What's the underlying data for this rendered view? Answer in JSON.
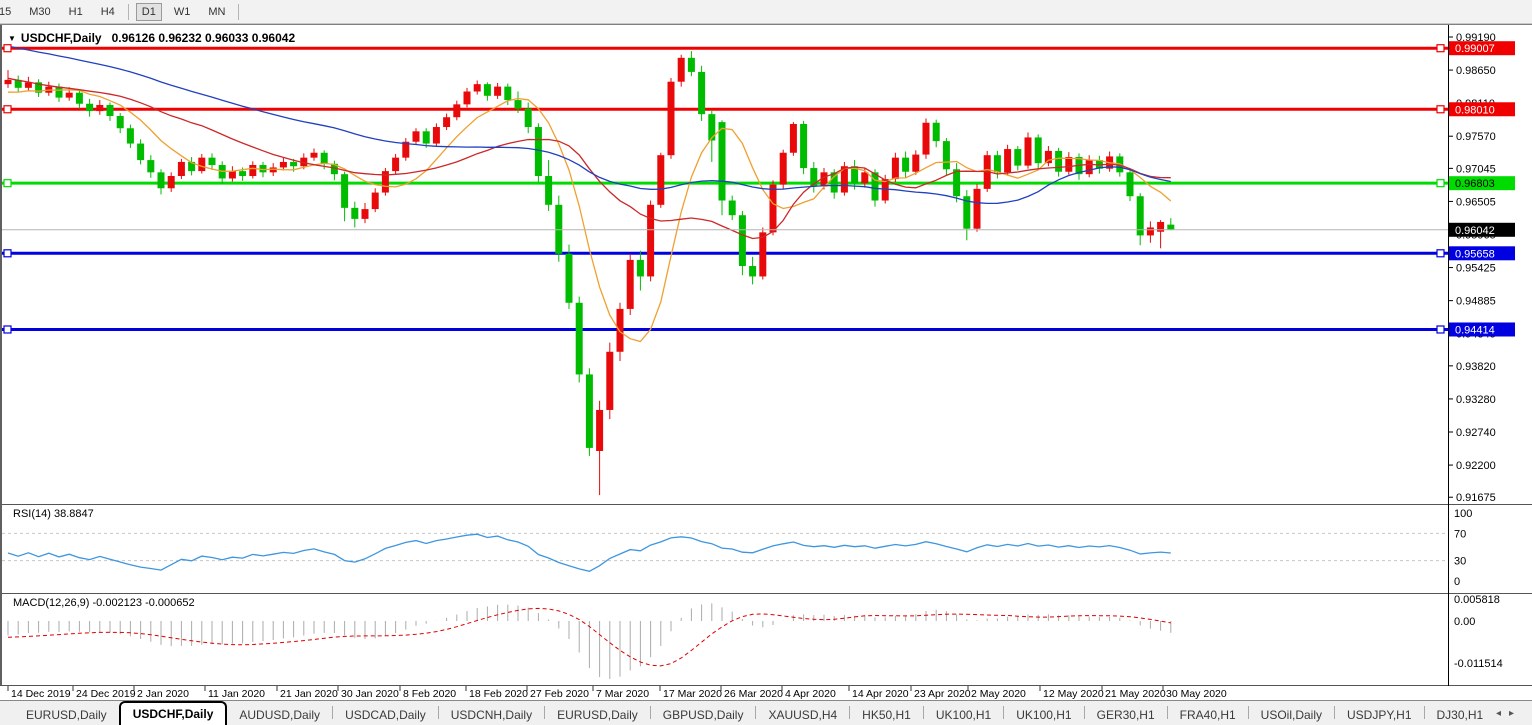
{
  "toolbar": {
    "timeframes": [
      {
        "label": "15",
        "active": false,
        "clipped": true
      },
      {
        "label": "M30",
        "active": false
      },
      {
        "label": "H1",
        "active": false
      },
      {
        "label": "H4",
        "active": false
      },
      {
        "label": "D1",
        "active": true
      },
      {
        "label": "W1",
        "active": false
      },
      {
        "label": "MN",
        "active": false
      }
    ]
  },
  "chart_title": {
    "dropdown_glyph": "▼",
    "symbol": "USDCHF,Daily",
    "ohlc_text": "0.96126 0.96232 0.96033 0.96042"
  },
  "chart_data": {
    "type": "candlestick+indicators",
    "symbol": "USDCHF",
    "timeframe": "Daily",
    "last_candle": {
      "open": 0.96126,
      "high": 0.96232,
      "low": 0.96033,
      "close": 0.96042
    },
    "price_axis_ticks": [
      "0.99190",
      "0.98650",
      "0.98110",
      "0.97570",
      "0.97045",
      "0.96505",
      "0.95965",
      "0.95425",
      "0.94885",
      "0.94345",
      "0.93820",
      "0.93280",
      "0.92740",
      "0.92200",
      "0.91675"
    ],
    "x_tick_labels": [
      "14 Dec 2019",
      "24 Dec 2019",
      "2 Jan 2020",
      "11 Jan 2020",
      "21 Jan 2020",
      "30 Jan 2020",
      "8 Feb 2020",
      "18 Feb 2020",
      "27 Feb 2020",
      "7 Mar 2020",
      "17 Mar 2020",
      "26 Mar 2020",
      "4 Apr 2020",
      "14 Apr 2020",
      "23 Apr 2020",
      "2 May 2020",
      "12 May 2020",
      "21 May 2020",
      "30 May 2020"
    ],
    "horizontal_lines": [
      {
        "price": 0.99007,
        "label": "0.99007",
        "color": "#F00000",
        "badge_text_color": "#FFFFFF"
      },
      {
        "price": 0.9801,
        "label": "0.98010",
        "color": "#F00000",
        "badge_text_color": "#FFFFFF"
      },
      {
        "price": 0.96803,
        "label": "0.96803",
        "color": "#00DC00",
        "badge_text_color": "#000000"
      },
      {
        "price": 0.95658,
        "label": "0.95658",
        "color": "#0000E0",
        "badge_text_color": "#FFFFFF"
      },
      {
        "price": 0.94414,
        "label": "0.94414",
        "color": "#0000E0",
        "badge_text_color": "#FFFFFF"
      }
    ],
    "current_price": {
      "value": 0.96042,
      "label": "0.96042",
      "badge_bg": "#000000",
      "badge_text_color": "#FFFFFF",
      "line_color": "#B4B4B4"
    },
    "candles_ohlc": [
      [
        0.9842,
        0.9865,
        0.9836,
        0.9849
      ],
      [
        0.9849,
        0.9856,
        0.983,
        0.9836
      ],
      [
        0.9836,
        0.9854,
        0.9831,
        0.9845
      ],
      [
        0.9845,
        0.985,
        0.9821,
        0.9828
      ],
      [
        0.9828,
        0.9846,
        0.9823,
        0.9838
      ],
      [
        0.9838,
        0.9843,
        0.9813,
        0.982
      ],
      [
        0.982,
        0.9837,
        0.9815,
        0.9828
      ],
      [
        0.9828,
        0.9833,
        0.9802,
        0.981
      ],
      [
        0.981,
        0.9818,
        0.9789,
        0.9798
      ],
      [
        0.9798,
        0.9816,
        0.9792,
        0.9808
      ],
      [
        0.9808,
        0.9812,
        0.9782,
        0.979
      ],
      [
        0.979,
        0.9795,
        0.9762,
        0.977
      ],
      [
        0.977,
        0.9776,
        0.9738,
        0.9745
      ],
      [
        0.9745,
        0.9752,
        0.9711,
        0.9718
      ],
      [
        0.9718,
        0.9726,
        0.9689,
        0.9698
      ],
      [
        0.9698,
        0.9703,
        0.9662,
        0.9672
      ],
      [
        0.9672,
        0.9698,
        0.9666,
        0.9692
      ],
      [
        0.9692,
        0.972,
        0.9687,
        0.9715
      ],
      [
        0.9715,
        0.9723,
        0.9693,
        0.97
      ],
      [
        0.97,
        0.9728,
        0.9696,
        0.9722
      ],
      [
        0.9722,
        0.9729,
        0.9702,
        0.971
      ],
      [
        0.971,
        0.9716,
        0.9679,
        0.9688
      ],
      [
        0.9688,
        0.9708,
        0.9683,
        0.97
      ],
      [
        0.97,
        0.9706,
        0.9684,
        0.9692
      ],
      [
        0.9692,
        0.9716,
        0.9688,
        0.971
      ],
      [
        0.971,
        0.9715,
        0.969,
        0.9698
      ],
      [
        0.9698,
        0.9713,
        0.9692,
        0.9706
      ],
      [
        0.9706,
        0.9722,
        0.9701,
        0.9715
      ],
      [
        0.9715,
        0.972,
        0.9699,
        0.9708
      ],
      [
        0.9708,
        0.9729,
        0.9703,
        0.9722
      ],
      [
        0.9722,
        0.9737,
        0.9717,
        0.973
      ],
      [
        0.973,
        0.9734,
        0.9703,
        0.9712
      ],
      [
        0.9712,
        0.9717,
        0.9685,
        0.9695
      ],
      [
        0.9695,
        0.9699,
        0.9618,
        0.964
      ],
      [
        0.964,
        0.965,
        0.9608,
        0.9622
      ],
      [
        0.9622,
        0.9648,
        0.9615,
        0.9638
      ],
      [
        0.9638,
        0.9672,
        0.9633,
        0.9665
      ],
      [
        0.9665,
        0.9705,
        0.966,
        0.97
      ],
      [
        0.97,
        0.9728,
        0.9695,
        0.9722
      ],
      [
        0.9722,
        0.9754,
        0.9717,
        0.9748
      ],
      [
        0.9748,
        0.977,
        0.9743,
        0.9765
      ],
      [
        0.9765,
        0.977,
        0.9738,
        0.9745
      ],
      [
        0.9745,
        0.9778,
        0.974,
        0.9772
      ],
      [
        0.9772,
        0.9794,
        0.9767,
        0.9788
      ],
      [
        0.9788,
        0.9815,
        0.9783,
        0.9809
      ],
      [
        0.9809,
        0.9836,
        0.9804,
        0.983
      ],
      [
        0.983,
        0.9848,
        0.9825,
        0.9842
      ],
      [
        0.9842,
        0.9845,
        0.9815,
        0.9823
      ],
      [
        0.9823,
        0.9844,
        0.9818,
        0.9838
      ],
      [
        0.9838,
        0.9843,
        0.9808,
        0.9816
      ],
      [
        0.9816,
        0.983,
        0.9795,
        0.9802
      ],
      [
        0.9802,
        0.9812,
        0.9762,
        0.9772
      ],
      [
        0.9772,
        0.9778,
        0.9682,
        0.9692
      ],
      [
        0.9692,
        0.9718,
        0.9635,
        0.9645
      ],
      [
        0.9645,
        0.966,
        0.9552,
        0.9565
      ],
      [
        0.9565,
        0.958,
        0.9475,
        0.9485
      ],
      [
        0.9485,
        0.9495,
        0.9355,
        0.9368
      ],
      [
        0.9368,
        0.9378,
        0.9235,
        0.9248
      ],
      [
        0.9243,
        0.9325,
        0.9171,
        0.931
      ],
      [
        0.931,
        0.942,
        0.9295,
        0.9405
      ],
      [
        0.9405,
        0.9485,
        0.939,
        0.9475
      ],
      [
        0.9475,
        0.9565,
        0.9465,
        0.9555
      ],
      [
        0.9555,
        0.957,
        0.9505,
        0.9528
      ],
      [
        0.9528,
        0.9652,
        0.952,
        0.9645
      ],
      [
        0.9645,
        0.973,
        0.964,
        0.9726
      ],
      [
        0.9726,
        0.9852,
        0.972,
        0.9846
      ],
      [
        0.9846,
        0.989,
        0.9838,
        0.9885
      ],
      [
        0.9885,
        0.9896,
        0.9855,
        0.9862
      ],
      [
        0.9862,
        0.9872,
        0.9782,
        0.9793
      ],
      [
        0.9793,
        0.98,
        0.9715,
        0.975
      ],
      [
        0.978,
        0.9783,
        0.9628,
        0.9652
      ],
      [
        0.9652,
        0.966,
        0.962,
        0.9628
      ],
      [
        0.9628,
        0.9635,
        0.953,
        0.9545
      ],
      [
        0.9545,
        0.956,
        0.9515,
        0.9528
      ],
      [
        0.9528,
        0.9608,
        0.9523,
        0.96
      ],
      [
        0.96,
        0.9685,
        0.9595,
        0.9678
      ],
      [
        0.9678,
        0.9735,
        0.967,
        0.973
      ],
      [
        0.973,
        0.978,
        0.9725,
        0.9777
      ],
      [
        0.9777,
        0.9782,
        0.9695,
        0.9705
      ],
      [
        0.9705,
        0.9715,
        0.9665,
        0.9675
      ],
      [
        0.9675,
        0.9705,
        0.967,
        0.9698
      ],
      [
        0.9698,
        0.9703,
        0.9655,
        0.9665
      ],
      [
        0.9665,
        0.9715,
        0.966,
        0.9708
      ],
      [
        0.9708,
        0.9718,
        0.967,
        0.968
      ],
      [
        0.968,
        0.9705,
        0.9673,
        0.9698
      ],
      [
        0.9698,
        0.9703,
        0.9642,
        0.9652
      ],
      [
        0.9652,
        0.9694,
        0.9647,
        0.9687
      ],
      [
        0.9687,
        0.973,
        0.9682,
        0.9722
      ],
      [
        0.9722,
        0.9732,
        0.9689,
        0.9699
      ],
      [
        0.9699,
        0.9734,
        0.9694,
        0.9727
      ],
      [
        0.9727,
        0.9786,
        0.972,
        0.9779
      ],
      [
        0.9779,
        0.9784,
        0.9739,
        0.9749
      ],
      [
        0.9749,
        0.9754,
        0.9693,
        0.9703
      ],
      [
        0.9703,
        0.9713,
        0.9649,
        0.9659
      ],
      [
        0.9659,
        0.9669,
        0.9587,
        0.9606
      ],
      [
        0.9606,
        0.9679,
        0.9601,
        0.9671
      ],
      [
        0.9671,
        0.9733,
        0.9666,
        0.9726
      ],
      [
        0.9726,
        0.9733,
        0.9688,
        0.9698
      ],
      [
        0.9698,
        0.9743,
        0.9693,
        0.9736
      ],
      [
        0.9736,
        0.9741,
        0.9701,
        0.9709
      ],
      [
        0.9709,
        0.9763,
        0.9704,
        0.9755
      ],
      [
        0.9755,
        0.976,
        0.9703,
        0.9713
      ],
      [
        0.9713,
        0.9741,
        0.9708,
        0.9733
      ],
      [
        0.9733,
        0.9738,
        0.9691,
        0.9699
      ],
      [
        0.9699,
        0.9731,
        0.9694,
        0.9723
      ],
      [
        0.9723,
        0.9729,
        0.9686,
        0.9695
      ],
      [
        0.9695,
        0.9726,
        0.969,
        0.9718
      ],
      [
        0.9718,
        0.9725,
        0.9696,
        0.9704
      ],
      [
        0.9704,
        0.9732,
        0.9699,
        0.9724
      ],
      [
        0.9724,
        0.9729,
        0.9691,
        0.9698
      ],
      [
        0.9698,
        0.9703,
        0.9651,
        0.9659
      ],
      [
        0.9659,
        0.9664,
        0.9579,
        0.9595
      ],
      [
        0.9595,
        0.9618,
        0.9583,
        0.9608
      ],
      [
        0.9601,
        0.962,
        0.9574,
        0.9617
      ],
      [
        0.96126,
        0.96232,
        0.96033,
        0.96042
      ]
    ],
    "ma_warmup_closes": [
      0.9988,
      0.9984,
      0.998,
      0.9982,
      0.9976,
      0.997,
      0.9973,
      0.9966,
      0.996,
      0.9963,
      0.9956,
      0.995,
      0.9953,
      0.9946,
      0.994,
      0.9943,
      0.9936,
      0.993,
      0.9933,
      0.9926,
      0.992,
      0.9923,
      0.9916,
      0.991,
      0.9913,
      0.9906,
      0.99,
      0.9903,
      0.9896,
      0.989,
      0.987,
      0.9862,
      0.9855,
      0.9848,
      0.9852,
      0.9844,
      0.9838,
      0.9842,
      0.9835,
      0.9828,
      0.9832,
      0.9825,
      0.982,
      0.9824,
      0.9818
    ],
    "moving_averages": [
      {
        "name": "fast",
        "period": 8,
        "color": "#EFA030"
      },
      {
        "name": "mid",
        "period": 20,
        "color": "#CC2828"
      },
      {
        "name": "slow",
        "period": 45,
        "color": "#2040C0"
      }
    ],
    "colors": {
      "bull": "#E80A0A",
      "bear": "#00BC00",
      "axis_text": "#000000",
      "panel_border": "#555555"
    }
  },
  "rsi": {
    "label": "RSI(14)",
    "value_text": "38.8847",
    "period": 14,
    "axis_labels": [
      "100",
      "70",
      "30",
      "0"
    ],
    "levels": [
      70,
      30
    ],
    "scale_min": 0,
    "scale_max": 100,
    "line_color": "#3E96E0",
    "level_color": "#C8C8C8"
  },
  "macd": {
    "label": "MACD(12,26,9)",
    "values_text": "-0.002123 -0.000652",
    "fast": 12,
    "slow": 26,
    "signal": 9,
    "current_macd": -0.002123,
    "current_signal": -0.000652,
    "axis_labels": [
      "0.005818",
      "0.00",
      "-0.011514"
    ],
    "axis_max": 0.005818,
    "axis_min": -0.011514,
    "hist_color": "#ABABAB",
    "signal_color": "#E00000"
  },
  "tabs": {
    "items": [
      {
        "label": "EURUSD,Daily",
        "active": false
      },
      {
        "label": "USDCHF,Daily",
        "active": true
      },
      {
        "label": "AUDUSD,Daily",
        "active": false
      },
      {
        "label": "USDCAD,Daily",
        "active": false
      },
      {
        "label": "USDCNH,Daily",
        "active": false
      },
      {
        "label": "EURUSD,Daily",
        "active": false
      },
      {
        "label": "GBPUSD,Daily",
        "active": false
      },
      {
        "label": "XAUUSD,H4",
        "active": false
      },
      {
        "label": "HK50,H1",
        "active": false
      },
      {
        "label": "UK100,H1",
        "active": false
      },
      {
        "label": "UK100,H1",
        "active": false
      },
      {
        "label": "GER30,H1",
        "active": false
      },
      {
        "label": "FRA40,H1",
        "active": false
      },
      {
        "label": "USOil,Daily",
        "active": false
      },
      {
        "label": "USDJPY,H1",
        "active": false
      },
      {
        "label": "DJ30,H1",
        "active": false
      }
    ],
    "scroll_left_icon": "◂",
    "scroll_right_icon": "▸"
  }
}
